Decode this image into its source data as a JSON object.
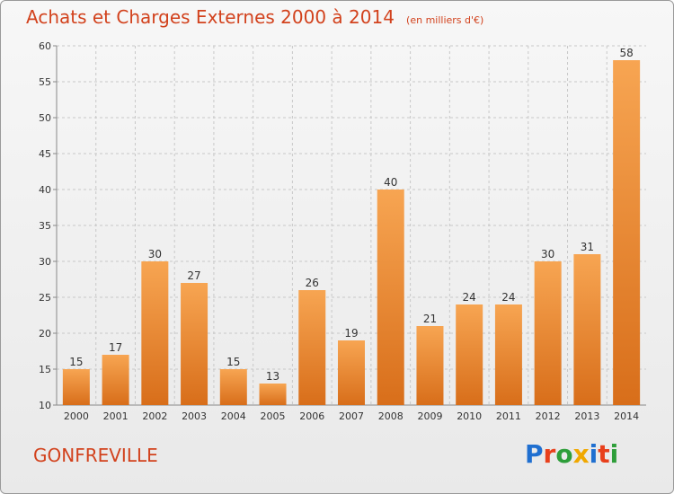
{
  "header": {
    "title": "Achats et Charges Externes 2000 à 2014",
    "subtitle": "(en milliers d'€)"
  },
  "footer": {
    "commune": "GONFREVILLE",
    "logo_text": "Proxiti",
    "logo_colors": [
      "#1f6fd0",
      "#e8401c",
      "#2e9e3a",
      "#f0a800",
      "#1f6fd0",
      "#e8401c",
      "#2e9e3a"
    ]
  },
  "colors": {
    "title": "#d2421d",
    "bar_top": "#f7a552",
    "bar_bottom": "#d86e1a",
    "grid": "#c8c8c8",
    "axis_text": "#333333"
  },
  "chart_data": {
    "type": "bar",
    "categories": [
      "2000",
      "2001",
      "2002",
      "2003",
      "2004",
      "2005",
      "2006",
      "2007",
      "2008",
      "2009",
      "2010",
      "2011",
      "2012",
      "2013",
      "2014"
    ],
    "values": [
      15,
      17,
      30,
      27,
      15,
      13,
      26,
      19,
      40,
      21,
      24,
      24,
      30,
      31,
      58
    ],
    "title": "Achats et Charges Externes 2000 à 2014",
    "subtitle": "(en milliers d'€)",
    "xlabel": "",
    "ylabel": "",
    "ylim": [
      10,
      60
    ],
    "yticks": [
      10,
      15,
      20,
      25,
      30,
      35,
      40,
      45,
      50,
      55,
      60
    ],
    "grid": true,
    "data_labels": true
  }
}
